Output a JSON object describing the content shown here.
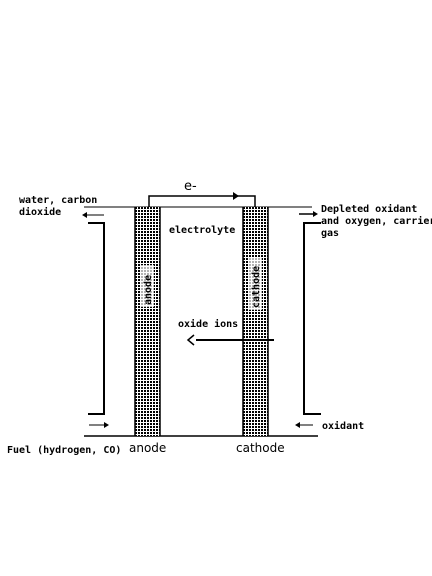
{
  "diagram": {
    "electron_label": "e-",
    "top_left_label": [
      "water, carbon",
      "dioxide"
    ],
    "top_right_label": [
      "Depleted oxidant",
      "and oxygen, carrier",
      "gas"
    ],
    "electrolyte_label": "electrolyte",
    "oxide_ions_label": "oxide ions",
    "anode_vertical_label": "anode",
    "cathode_vertical_label": "cathode",
    "oxidant_label": "oxidant",
    "fuel_label": "Fuel (hydrogen, CO)",
    "anode_label": "anode",
    "cathode_label": "cathode"
  },
  "colors": {
    "ink": "#000000",
    "background": "#ffffff"
  }
}
